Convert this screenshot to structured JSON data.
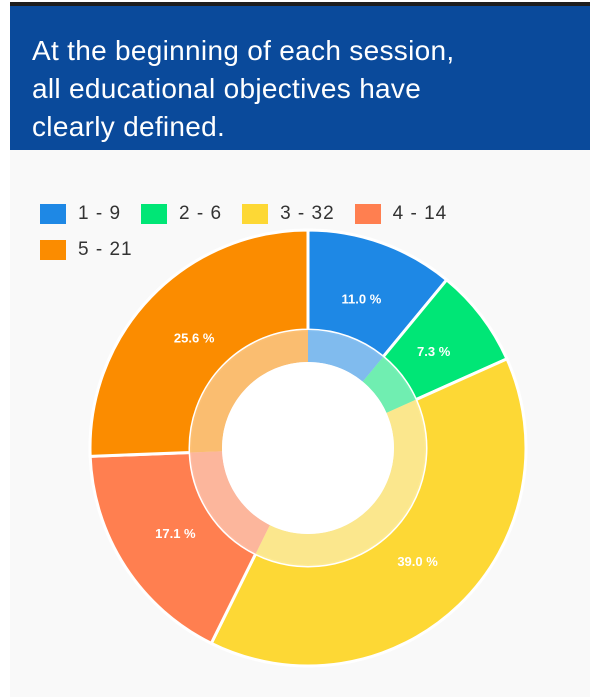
{
  "header": {
    "title_lines": [
      "At the beginning of each session,",
      "all educational objectives have",
      "clearly defined."
    ]
  },
  "chart_data": {
    "type": "pie",
    "style": "donut",
    "legend_position": "top-left",
    "categories": [
      "1 - 9",
      "2 - 6",
      "3 - 32",
      "4 - 14",
      "5 - 21"
    ],
    "values": [
      9,
      6,
      32,
      14,
      21
    ],
    "percent_labels": [
      "11.0 %",
      "7.3 %",
      "39.0 %",
      "17.1 %",
      "25.6 %"
    ],
    "colors": [
      "#1e88e5",
      "#00e676",
      "#fdd835",
      "#ff7f50",
      "#fb8c00"
    ]
  }
}
